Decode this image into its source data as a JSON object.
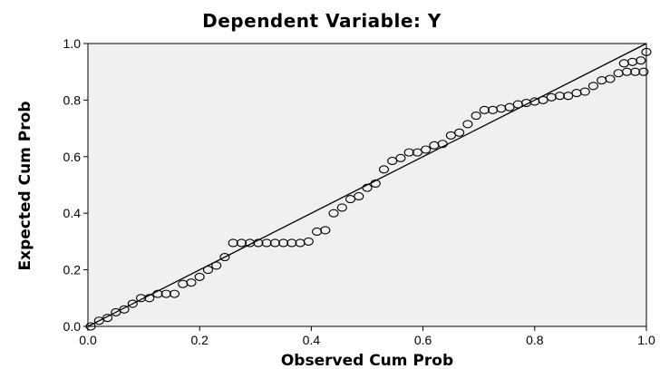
{
  "chart_data": {
    "type": "scatter",
    "title": "Dependent Variable: Y",
    "xlabel": "Observed Cum Prob",
    "ylabel": "Expected Cum Prob",
    "xlim": [
      0,
      1
    ],
    "ylim": [
      0,
      1
    ],
    "xticks": [
      "0.0",
      "0.2",
      "0.4",
      "0.6",
      "0.8",
      "1.0"
    ],
    "yticks": [
      "0.0",
      "0.2",
      "0.4",
      "0.6",
      "0.8",
      "1.0"
    ],
    "grid": false,
    "legend": "none",
    "reference_line": {
      "from": [
        0,
        0
      ],
      "to": [
        1,
        1
      ]
    },
    "marker": "open-circle",
    "points": [
      [
        0.005,
        0.0
      ],
      [
        0.02,
        0.02
      ],
      [
        0.035,
        0.03
      ],
      [
        0.05,
        0.05
      ],
      [
        0.065,
        0.06
      ],
      [
        0.08,
        0.08
      ],
      [
        0.095,
        0.1
      ],
      [
        0.11,
        0.1
      ],
      [
        0.125,
        0.115
      ],
      [
        0.14,
        0.115
      ],
      [
        0.155,
        0.115
      ],
      [
        0.17,
        0.15
      ],
      [
        0.185,
        0.155
      ],
      [
        0.2,
        0.175
      ],
      [
        0.215,
        0.2
      ],
      [
        0.23,
        0.215
      ],
      [
        0.245,
        0.245
      ],
      [
        0.26,
        0.295
      ],
      [
        0.275,
        0.295
      ],
      [
        0.29,
        0.295
      ],
      [
        0.305,
        0.295
      ],
      [
        0.32,
        0.295
      ],
      [
        0.335,
        0.295
      ],
      [
        0.35,
        0.295
      ],
      [
        0.365,
        0.295
      ],
      [
        0.38,
        0.295
      ],
      [
        0.395,
        0.3
      ],
      [
        0.41,
        0.335
      ],
      [
        0.425,
        0.34
      ],
      [
        0.44,
        0.4
      ],
      [
        0.455,
        0.42
      ],
      [
        0.47,
        0.45
      ],
      [
        0.485,
        0.46
      ],
      [
        0.5,
        0.49
      ],
      [
        0.515,
        0.505
      ],
      [
        0.53,
        0.555
      ],
      [
        0.545,
        0.585
      ],
      [
        0.56,
        0.595
      ],
      [
        0.575,
        0.615
      ],
      [
        0.59,
        0.615
      ],
      [
        0.605,
        0.625
      ],
      [
        0.62,
        0.64
      ],
      [
        0.635,
        0.645
      ],
      [
        0.65,
        0.675
      ],
      [
        0.665,
        0.685
      ],
      [
        0.68,
        0.715
      ],
      [
        0.695,
        0.745
      ],
      [
        0.71,
        0.765
      ],
      [
        0.725,
        0.765
      ],
      [
        0.74,
        0.77
      ],
      [
        0.755,
        0.775
      ],
      [
        0.77,
        0.785
      ],
      [
        0.785,
        0.79
      ],
      [
        0.8,
        0.795
      ],
      [
        0.815,
        0.8
      ],
      [
        0.83,
        0.81
      ],
      [
        0.845,
        0.815
      ],
      [
        0.86,
        0.815
      ],
      [
        0.875,
        0.825
      ],
      [
        0.89,
        0.83
      ],
      [
        0.905,
        0.85
      ],
      [
        0.92,
        0.87
      ],
      [
        0.935,
        0.875
      ],
      [
        0.95,
        0.895
      ],
      [
        0.965,
        0.9
      ],
      [
        0.98,
        0.9
      ],
      [
        0.995,
        0.9
      ],
      [
        0.96,
        0.93
      ],
      [
        0.975,
        0.935
      ],
      [
        0.99,
        0.94
      ],
      [
        1.0,
        0.97
      ]
    ]
  }
}
